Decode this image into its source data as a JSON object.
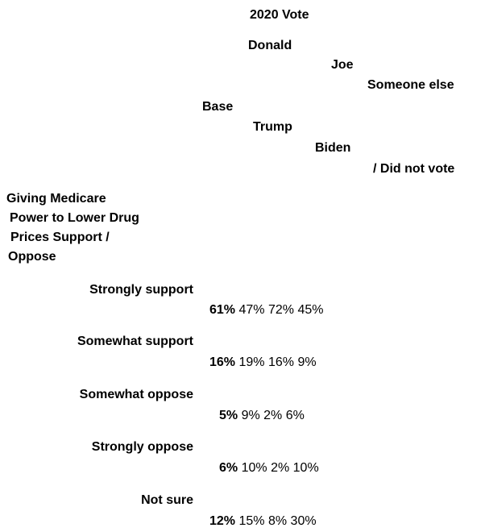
{
  "header": {
    "group_title": "2020 Vote",
    "col_base": "Base",
    "col_trump_line1": "Donald",
    "col_trump_line2": "Trump",
    "col_biden_line1": "Joe",
    "col_biden_line2": "Biden",
    "col_other_line1": "Someone else",
    "col_other_line2": "/ Did not vote"
  },
  "question": {
    "line1": "Giving Medicare",
    "line2": "Power to Lower Drug",
    "line3": "Prices Support /",
    "line4": "Oppose"
  },
  "chart_data": {
    "type": "table",
    "columns": [
      "Base",
      "Donald Trump",
      "Joe Biden",
      "Someone else / Did not vote"
    ],
    "rows": [
      {
        "label": "Strongly support",
        "values": [
          "61%",
          "47%",
          "72%",
          "45%"
        ]
      },
      {
        "label": "Somewhat support",
        "values": [
          "16%",
          "19%",
          "16%",
          "9%"
        ]
      },
      {
        "label": "Somewhat oppose",
        "values": [
          "5%",
          "9%",
          "2%",
          "6%"
        ]
      },
      {
        "label": "Strongly oppose",
        "values": [
          "6%",
          "10%",
          "2%",
          "10%"
        ]
      },
      {
        "label": "Not sure",
        "values": [
          "12%",
          "15%",
          "8%",
          "30%"
        ]
      }
    ]
  }
}
